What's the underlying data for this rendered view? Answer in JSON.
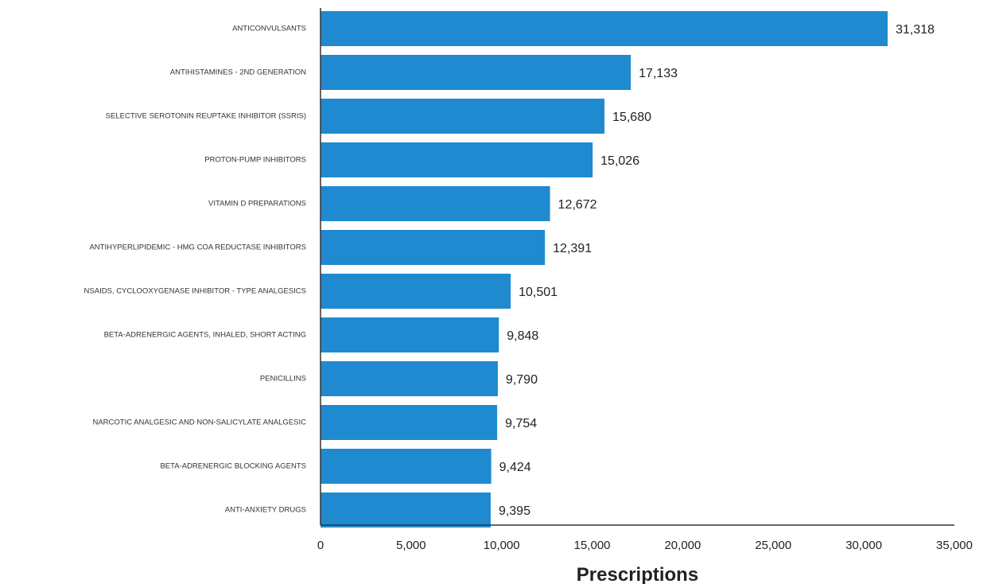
{
  "chart_data": {
    "type": "bar",
    "orientation": "horizontal",
    "title": "",
    "xlabel": "Prescriptions",
    "ylabel": "",
    "xlim": [
      0,
      35000
    ],
    "x_ticks": [
      0,
      5000,
      10000,
      15000,
      20000,
      25000,
      30000,
      35000
    ],
    "x_tick_labels": [
      "0",
      "5,000",
      "10,000",
      "15,000",
      "20,000",
      "25,000",
      "30,000",
      "35,000"
    ],
    "grid": false,
    "legend": "none",
    "bar_color": "#1f8ad0",
    "categories": [
      "ANTICONVULSANTS",
      "ANTIHISTAMINES - 2ND GENERATION",
      "SELECTIVE SEROTONIN REUPTAKE INHIBITOR (SSRIS)",
      "PROTON-PUMP INHIBITORS",
      "VITAMIN D PREPARATIONS",
      "ANTIHYPERLIPIDEMIC - HMG COA REDUCTASE INHIBITORS",
      "NSAIDS, CYCLOOXYGENASE INHIBITOR - TYPE ANALGESICS",
      "BETA-ADRENERGIC AGENTS, INHALED, SHORT ACTING",
      "PENICILLINS",
      "NARCOTIC ANALGESIC AND NON-SALICYLATE ANALGESIC",
      "BETA-ADRENERGIC BLOCKING AGENTS",
      "ANTI-ANXIETY DRUGS"
    ],
    "values": [
      31318,
      17133,
      15680,
      15026,
      12672,
      12391,
      10501,
      9848,
      9790,
      9754,
      9424,
      9395
    ],
    "value_labels": [
      "31,318",
      "17,133",
      "15,680",
      "15,026",
      "12,672",
      "12,391",
      "10,501",
      "9,848",
      "9,790",
      "9,754",
      "9,424",
      "9,395"
    ]
  }
}
